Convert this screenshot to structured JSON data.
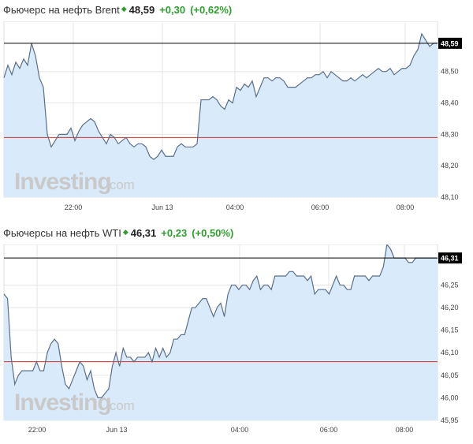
{
  "charts": [
    {
      "header": {
        "name": "Фьючерс на нефть Brent",
        "arrow": "◆",
        "price": "48,59",
        "change": "+0,30",
        "percent": "(+0,62%)"
      },
      "current_label": "48,59",
      "watermark": {
        "brand": "Investing",
        "suffix": ".com"
      },
      "x_ticks": [
        "22:00",
        "Jun 13",
        "04:00",
        "06:00",
        "08:00"
      ],
      "y_ticks": [
        "48,50",
        "48,40",
        "48,30",
        "48,20",
        "48,10"
      ]
    },
    {
      "header": {
        "name": "Фьючерсы на нефть WTI",
        "arrow": "◆",
        "price": "46,31",
        "change": "+0,23",
        "percent": "(+0,50%)"
      },
      "current_label": "46,31",
      "watermark": {
        "brand": "Investing",
        "suffix": ".com"
      },
      "x_ticks": [
        "22:00",
        "Jun 13",
        "04:00",
        "06:00",
        "08:00"
      ],
      "y_ticks": [
        "46,25",
        "46,20",
        "46,15",
        "46,10",
        "46,05",
        "46,00",
        "45,95"
      ]
    }
  ],
  "colors": {
    "line": "#5a6f8a",
    "fill": "#d9eafb",
    "current_line": "#000000",
    "prev_close_line": "#cc3333",
    "grid": "#e6e6e6",
    "up": "#2e9e2e",
    "watermark": "#c9c9c9"
  },
  "chart_data": [
    {
      "type": "area",
      "title": "Фьючерс на нефть Brent",
      "ylim": [
        48.1,
        48.66
      ],
      "current": 48.59,
      "prev_close": 48.29,
      "x_tick_labels": [
        "22:00",
        "Jun 13",
        "04:00",
        "06:00",
        "08:00"
      ],
      "x": [
        0,
        1,
        2,
        3,
        4,
        5,
        6,
        7,
        8,
        9,
        10,
        11,
        12,
        13,
        14,
        15,
        16,
        17,
        18,
        19,
        20,
        21,
        22,
        23,
        24,
        25,
        26,
        27,
        28,
        29,
        30,
        31,
        32,
        33,
        34,
        35,
        36,
        37,
        38,
        39,
        40,
        41,
        42,
        43,
        44,
        45,
        46,
        47,
        48,
        49,
        50,
        51,
        52,
        53,
        54,
        55,
        56,
        57,
        58,
        59,
        60,
        61,
        62,
        63,
        64,
        65,
        66,
        67,
        68,
        69,
        70,
        71,
        72,
        73,
        74,
        75,
        76,
        77,
        78,
        79,
        80,
        81,
        82,
        83,
        84,
        85,
        86,
        87,
        88,
        89,
        90,
        91,
        92,
        93,
        94,
        95,
        96,
        97,
        98,
        99,
        100,
        101,
        102,
        103,
        104,
        105,
        106,
        107,
        108,
        109,
        110
      ],
      "values": [
        48.48,
        48.52,
        48.49,
        48.53,
        48.51,
        48.54,
        48.52,
        48.59,
        48.55,
        48.48,
        48.45,
        48.3,
        48.26,
        48.28,
        48.3,
        48.3,
        48.3,
        48.32,
        48.28,
        48.31,
        48.33,
        48.34,
        48.35,
        48.34,
        48.31,
        48.29,
        48.27,
        48.3,
        48.29,
        48.27,
        48.28,
        48.29,
        48.27,
        48.26,
        48.27,
        48.27,
        48.26,
        48.23,
        48.22,
        48.23,
        48.25,
        48.23,
        48.23,
        48.23,
        48.26,
        48.27,
        48.26,
        48.26,
        48.26,
        48.27,
        48.41,
        48.41,
        48.41,
        48.42,
        48.41,
        48.39,
        48.38,
        48.41,
        48.4,
        48.45,
        48.44,
        48.46,
        48.45,
        48.47,
        48.42,
        48.45,
        48.48,
        48.48,
        48.47,
        48.48,
        48.48,
        48.47,
        48.45,
        48.45,
        48.45,
        48.46,
        48.47,
        48.48,
        48.48,
        48.49,
        48.49,
        48.5,
        48.48,
        48.5,
        48.49,
        48.48,
        48.47,
        48.47,
        48.48,
        48.47,
        48.48,
        48.49,
        48.48,
        48.49,
        48.5,
        48.51,
        48.5,
        48.5,
        48.51,
        48.49,
        48.5,
        48.51,
        48.51,
        48.52,
        48.55,
        48.57,
        48.62,
        48.6,
        48.58,
        48.59,
        48.59
      ]
    },
    {
      "type": "area",
      "title": "Фьючерсы на нефть WTI",
      "ylim": [
        45.95,
        46.34
      ],
      "current": 46.31,
      "prev_close": 46.08,
      "x_tick_labels": [
        "22:00",
        "Jun 13",
        "04:00",
        "06:00",
        "08:00"
      ],
      "x": [
        0,
        1,
        2,
        3,
        4,
        5,
        6,
        7,
        8,
        9,
        10,
        11,
        12,
        13,
        14,
        15,
        16,
        17,
        18,
        19,
        20,
        21,
        22,
        23,
        24,
        25,
        26,
        27,
        28,
        29,
        30,
        31,
        32,
        33,
        34,
        35,
        36,
        37,
        38,
        39,
        40,
        41,
        42,
        43,
        44,
        45,
        46,
        47,
        48,
        49,
        50,
        51,
        52,
        53,
        54,
        55,
        56,
        57,
        58,
        59,
        60,
        61,
        62,
        63,
        64,
        65,
        66,
        67,
        68,
        69,
        70,
        71,
        72,
        73,
        74,
        75,
        76,
        77,
        78,
        79,
        80,
        81,
        82,
        83,
        84,
        85,
        86,
        87,
        88,
        89,
        90,
        91,
        92,
        93,
        94,
        95,
        96,
        97,
        98,
        99,
        100,
        101,
        102,
        103,
        104,
        105,
        106,
        107,
        108,
        109,
        110,
        111,
        112,
        113,
        114,
        115,
        116,
        117,
        118,
        119,
        120
      ],
      "values": [
        46.23,
        46.22,
        46.09,
        46.03,
        46.05,
        46.06,
        46.06,
        46.06,
        46.06,
        46.08,
        46.06,
        46.06,
        46.1,
        46.12,
        46.13,
        46.12,
        46.07,
        46.03,
        46.02,
        46.04,
        46.06,
        46.08,
        46.07,
        46.04,
        46.06,
        46.02,
        46.0,
        46.0,
        46.01,
        46.02,
        46.07,
        46.1,
        46.07,
        46.11,
        46.09,
        46.09,
        46.08,
        46.09,
        46.09,
        46.09,
        46.1,
        46.08,
        46.11,
        46.09,
        46.11,
        46.09,
        46.1,
        46.13,
        46.13,
        46.14,
        46.14,
        46.17,
        46.2,
        46.2,
        46.21,
        46.22,
        46.22,
        46.2,
        46.18,
        46.2,
        46.21,
        46.18,
        46.23,
        46.25,
        46.25,
        46.24,
        46.25,
        46.25,
        46.24,
        46.26,
        46.27,
        46.24,
        46.25,
        46.25,
        46.24,
        46.27,
        46.27,
        46.27,
        46.27,
        46.28,
        46.28,
        46.27,
        46.27,
        46.27,
        46.26,
        46.27,
        46.23,
        46.24,
        46.24,
        46.24,
        46.23,
        46.25,
        46.27,
        46.25,
        46.25,
        46.24,
        46.24,
        46.27,
        46.27,
        46.27,
        46.27,
        46.26,
        46.27,
        46.27,
        46.27,
        46.29,
        46.34,
        46.33,
        46.31,
        46.31,
        46.31,
        46.31,
        46.3,
        46.3,
        46.31,
        46.31,
        46.31,
        46.31,
        46.31,
        46.31,
        46.31
      ]
    }
  ]
}
